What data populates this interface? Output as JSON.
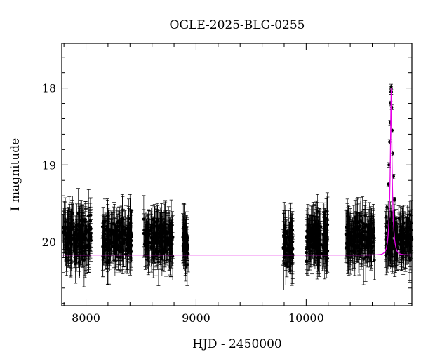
{
  "chart_data": {
    "type": "scatter",
    "title": "OGLE-2025-BLG-0255",
    "xlabel": "HJD - 2450000",
    "ylabel": "I magnitude",
    "xlim": [
      7780,
      10960
    ],
    "ylim": [
      20.83,
      17.42
    ],
    "y_inverted": true,
    "xticks": [
      8000,
      9000,
      10000
    ],
    "yticks": [
      18,
      19,
      20
    ],
    "grid": false,
    "series": [
      {
        "kind": "points_with_errorbars",
        "color": "#000000",
        "seasons": [
          {
            "x_start": 7790,
            "x_end": 8050,
            "mean_mag": 19.95,
            "scatter": 0.22,
            "err": 0.25
          },
          {
            "x_start": 8150,
            "x_end": 8420,
            "mean_mag": 19.95,
            "scatter": 0.2,
            "err": 0.24
          },
          {
            "x_start": 8520,
            "x_end": 8790,
            "mean_mag": 19.96,
            "scatter": 0.2,
            "err": 0.24
          },
          {
            "x_start": 8880,
            "x_end": 8930,
            "mean_mag": 19.98,
            "scatter": 0.2,
            "err": 0.22
          },
          {
            "x_start": 9790,
            "x_end": 9880,
            "mean_mag": 20.02,
            "scatter": 0.22,
            "err": 0.25
          },
          {
            "x_start": 10000,
            "x_end": 10200,
            "mean_mag": 19.97,
            "scatter": 0.22,
            "err": 0.26
          },
          {
            "x_start": 10360,
            "x_end": 10620,
            "mean_mag": 19.95,
            "scatter": 0.2,
            "err": 0.24
          },
          {
            "x_start": 10720,
            "x_end": 10960,
            "mean_mag": 19.95,
            "scatter": 0.2,
            "err": 0.24
          }
        ],
        "peak_points": [
          {
            "x": 10722,
            "y": 19.8
          },
          {
            "x": 10734,
            "y": 19.55
          },
          {
            "x": 10745,
            "y": 19.25
          },
          {
            "x": 10752,
            "y": 19.0
          },
          {
            "x": 10758,
            "y": 18.7
          },
          {
            "x": 10763,
            "y": 18.45
          },
          {
            "x": 10767,
            "y": 18.2
          },
          {
            "x": 10770,
            "y": 18.05
          },
          {
            "x": 10772,
            "y": 17.98
          },
          {
            "x": 10774,
            "y": 18.05
          },
          {
            "x": 10777,
            "y": 18.25
          },
          {
            "x": 10781,
            "y": 18.55
          },
          {
            "x": 10786,
            "y": 18.85
          },
          {
            "x": 10793,
            "y": 19.15
          },
          {
            "x": 10802,
            "y": 19.45
          },
          {
            "x": 10815,
            "y": 19.7
          }
        ]
      },
      {
        "kind": "model_curve",
        "color": "#e600e6",
        "baseline_mag": 20.17,
        "peak_x": 10772,
        "peak_mag": 17.98,
        "tE": 25
      }
    ]
  }
}
